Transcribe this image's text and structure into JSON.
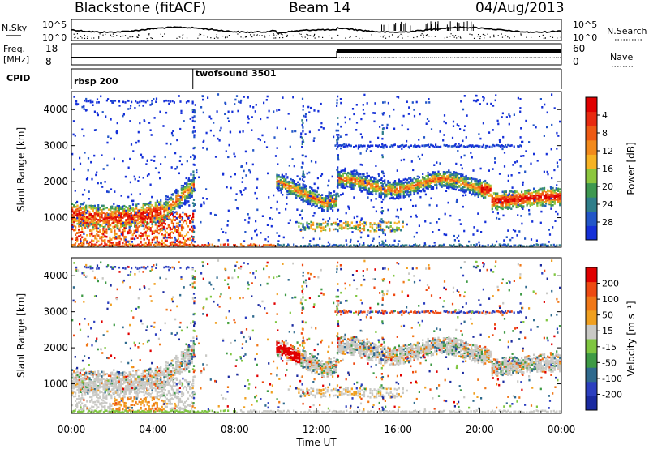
{
  "header": {
    "title_left": "Blackstone (fitACF)",
    "title_center": "Beam 14",
    "title_right": "04/Aug/2013"
  },
  "panels": {
    "nsky_label": "N.Sky",
    "nsky_ticks": [
      "10^5",
      "10^0"
    ],
    "nsearch_label": "N.Search",
    "nsearch_ticks": [
      "10^5",
      "10^0"
    ],
    "freq_label_line1": "Freq.",
    "freq_label_line2": "[MHz]",
    "freq_ticks": [
      "18",
      "8"
    ],
    "nave_label": "Nave",
    "nave_ticks": [
      "60",
      "0"
    ],
    "cpid_label": "CPID",
    "cpid_segments": [
      {
        "name": "rbsp 200",
        "start_h": 0,
        "end_h": 5.95
      },
      {
        "name": "twofsound 3501",
        "start_h": 5.95,
        "end_h": 24
      }
    ]
  },
  "chart_data": [
    {
      "type": "heatmap",
      "name": "power",
      "ylabel": "Slant Range [km]",
      "yticks": [
        1000,
        2000,
        3000,
        4000
      ],
      "ylim": [
        180,
        4500
      ],
      "xlim": [
        0,
        24
      ],
      "colorbar_label": "Power [dB]",
      "colorbar_ticks": [
        "4",
        "8",
        "12",
        "16",
        "20",
        "24",
        "28"
      ],
      "colorbar_colors": [
        "#1530d8",
        "#2256c8",
        "#2f7e8a",
        "#3e9850",
        "#8cc63e",
        "#f7b324",
        "#f28a1c",
        "#ee5a14",
        "#e82a10",
        "#e00000"
      ]
    },
    {
      "type": "heatmap",
      "name": "velocity",
      "ylabel": "Slant Range [km]",
      "yticks": [
        1000,
        2000,
        3000,
        4000
      ],
      "ylim": [
        180,
        4500
      ],
      "xlim": [
        0,
        24
      ],
      "xlabel": "Time UT",
      "xticks": [
        "00:00",
        "04:00",
        "08:00",
        "12:00",
        "16:00",
        "20:00",
        "00:00"
      ],
      "colorbar_label": "Velocity [m s⁻¹]",
      "colorbar_ticks": [
        "200",
        "100",
        "50",
        "15",
        "-15",
        "-50",
        "-100",
        "-200"
      ],
      "colorbar_colors": [
        "#1a2aa0",
        "#2c3fbf",
        "#2f6a8e",
        "#3e9a45",
        "#7fc640",
        "#c9c9c5",
        "#f0a020",
        "#f07818",
        "#ee4a12",
        "#e00000"
      ]
    }
  ]
}
